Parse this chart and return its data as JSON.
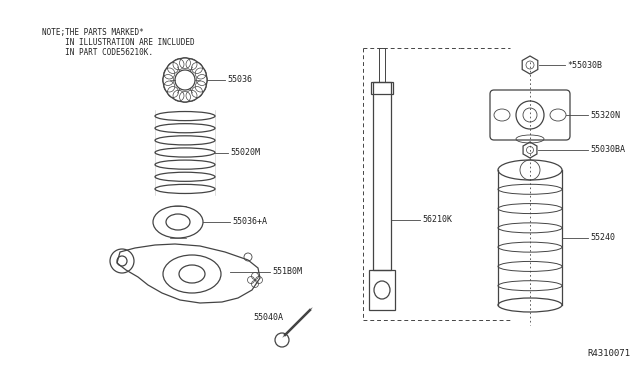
{
  "bg_color": "#ffffff",
  "line_color": "#444444",
  "text_color": "#222222",
  "title_note_line1": "NOTE;THE PARTS MARKED*",
  "title_note_line2": "     IN ILLUSTRATION ARE INCLUDED",
  "title_note_line3": "     IN PART CODE56210K.",
  "diagram_id": "R4310071",
  "figsize": [
    6.4,
    3.72
  ],
  "dpi": 100
}
